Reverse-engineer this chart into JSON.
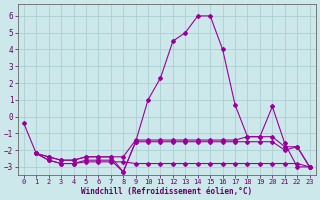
{
  "xlabel": "Windchill (Refroidissement éolien,°C)",
  "background_color": "#cce8ea",
  "grid_color": "#aacfd4",
  "line_color": "#990099",
  "xlim": [
    -0.5,
    23.5
  ],
  "ylim": [
    -3.5,
    6.7
  ],
  "yticks": [
    -3,
    -2,
    -1,
    0,
    1,
    2,
    3,
    4,
    5,
    6
  ],
  "xticks": [
    0,
    1,
    2,
    3,
    4,
    5,
    6,
    7,
    8,
    9,
    10,
    11,
    12,
    13,
    14,
    15,
    16,
    17,
    18,
    19,
    20,
    21,
    22,
    23
  ],
  "lines": [
    {
      "x": [
        0,
        1,
        2,
        3,
        4,
        5,
        6,
        7,
        8,
        9,
        10,
        11,
        12,
        13,
        14,
        15,
        16,
        17,
        18,
        19,
        20,
        21,
        22,
        23
      ],
      "y": [
        -0.4,
        -2.2,
        -2.4,
        -2.6,
        -2.6,
        -2.4,
        -2.4,
        -2.4,
        -3.3,
        -1.5,
        1.0,
        2.3,
        4.5,
        5.0,
        6.0,
        6.0,
        4.0,
        0.7,
        -1.2,
        -1.2,
        0.6,
        -1.6,
        -3.0,
        -3.0
      ]
    },
    {
      "x": [
        1,
        2,
        3,
        4,
        5,
        6,
        7,
        8,
        9,
        10,
        11,
        12,
        13,
        14,
        15,
        16,
        17,
        18,
        19,
        20,
        21,
        22,
        23
      ],
      "y": [
        -2.2,
        -2.4,
        -2.6,
        -2.6,
        -2.4,
        -2.4,
        -2.4,
        -2.4,
        -1.4,
        -1.4,
        -1.4,
        -1.4,
        -1.4,
        -1.4,
        -1.4,
        -1.4,
        -1.4,
        -1.2,
        -1.2,
        -1.2,
        -1.8,
        -1.8,
        -3.0
      ]
    },
    {
      "x": [
        1,
        2,
        3,
        4,
        5,
        6,
        7,
        8,
        9,
        10,
        11,
        12,
        13,
        14,
        15,
        16,
        17,
        18,
        19,
        20,
        21,
        22,
        23
      ],
      "y": [
        -2.2,
        -2.6,
        -2.8,
        -2.8,
        -2.6,
        -2.6,
        -2.6,
        -3.3,
        -1.5,
        -1.5,
        -1.5,
        -1.5,
        -1.5,
        -1.5,
        -1.5,
        -1.5,
        -1.5,
        -1.5,
        -1.5,
        -1.5,
        -2.0,
        -1.8,
        -3.0
      ]
    },
    {
      "x": [
        1,
        2,
        3,
        4,
        5,
        6,
        7,
        8,
        9,
        10,
        11,
        12,
        13,
        14,
        15,
        16,
        17,
        18,
        19,
        20,
        21,
        22,
        23
      ],
      "y": [
        -2.2,
        -2.6,
        -2.8,
        -2.8,
        -2.7,
        -2.7,
        -2.7,
        -2.7,
        -2.8,
        -2.8,
        -2.8,
        -2.8,
        -2.8,
        -2.8,
        -2.8,
        -2.8,
        -2.8,
        -2.8,
        -2.8,
        -2.8,
        -2.8,
        -2.8,
        -3.0
      ]
    }
  ]
}
